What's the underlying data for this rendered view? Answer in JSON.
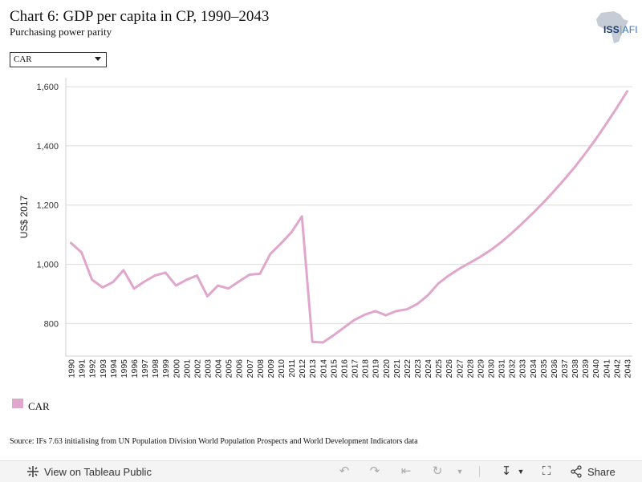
{
  "header": {
    "title": "Chart 6: GDP per capita in CP, 1990–2043",
    "subtitle": "Purchasing power parity"
  },
  "logo": {
    "text_iss": "ISS",
    "text_afr": "AFI",
    "icon": "africa-map-icon"
  },
  "filter": {
    "selected": "CAR"
  },
  "chart_data": {
    "type": "line",
    "title": "",
    "xlabel": "",
    "ylabel": "US$ 2017",
    "ylim": [
      690,
      1630
    ],
    "yticks": [
      800,
      1000,
      1200,
      1400,
      1600
    ],
    "ytick_labels": [
      "800",
      "1,000",
      "1,200",
      "1,400",
      "1,600"
    ],
    "grid": true,
    "legend": "bottom-left",
    "x": [
      1990,
      1991,
      1992,
      1993,
      1994,
      1995,
      1996,
      1997,
      1998,
      1999,
      2000,
      2001,
      2002,
      2003,
      2004,
      2005,
      2006,
      2007,
      2008,
      2009,
      2010,
      2011,
      2012,
      2013,
      2014,
      2015,
      2016,
      2017,
      2018,
      2019,
      2020,
      2021,
      2022,
      2023,
      2024,
      2025,
      2026,
      2027,
      2028,
      2029,
      2030,
      2031,
      2032,
      2033,
      2034,
      2035,
      2036,
      2037,
      2038,
      2039,
      2040,
      2041,
      2042,
      2043
    ],
    "series": [
      {
        "name": "CAR",
        "color": "#e0a6cc",
        "values": [
          1072,
          1040,
          948,
          922,
          940,
          980,
          918,
          942,
          962,
          972,
          928,
          948,
          962,
          892,
          928,
          918,
          942,
          965,
          968,
          1035,
          1070,
          1108,
          1162,
          738,
          736,
          760,
          786,
          812,
          830,
          842,
          828,
          842,
          848,
          866,
          895,
          935,
          962,
          985,
          1005,
          1025,
          1048,
          1075,
          1105,
          1138,
          1172,
          1208,
          1246,
          1286,
          1328,
          1374,
          1422,
          1474,
          1528,
          1584
        ]
      }
    ]
  },
  "legend": {
    "items": [
      {
        "label": "CAR",
        "color": "#e0a6cc"
      }
    ]
  },
  "source": "Source: IFs 7.63 initialising from UN Population Division World Population Prospects and World Development Indicators data",
  "toolbar": {
    "view_label": "View on Tableau Public",
    "share_label": "Share",
    "icons": [
      "undo-icon",
      "redo-icon",
      "revert-icon",
      "refresh-icon",
      "download-icon",
      "fullscreen-icon",
      "share-icon"
    ]
  }
}
